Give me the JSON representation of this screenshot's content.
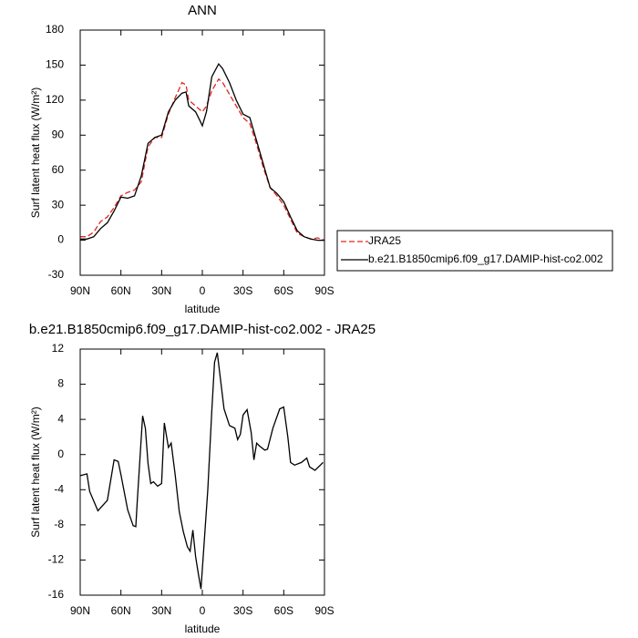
{
  "chart_data": [
    {
      "type": "line",
      "title": "ANN",
      "x_label": "latitude",
      "y_label": "Surf latent heat flux (W/m²)",
      "xlim": [
        90,
        -90
      ],
      "xticks": [
        {
          "value": 90,
          "label": "90N"
        },
        {
          "value": 60,
          "label": "60N"
        },
        {
          "value": 30,
          "label": "30N"
        },
        0,
        {
          "value": -30,
          "label": "30S"
        },
        {
          "value": -60,
          "label": "60S"
        },
        {
          "value": -90,
          "label": "90S"
        }
      ],
      "ylim": [
        -30,
        180
      ],
      "yticks": [
        -30,
        0,
        30,
        60,
        90,
        120,
        150,
        180
      ],
      "legend": "outside-right",
      "x": [
        90,
        85,
        80,
        75,
        70,
        65,
        60,
        55,
        50,
        45,
        40,
        35,
        30,
        25,
        20,
        15,
        12,
        10,
        5,
        2,
        0,
        -3,
        -7,
        -12,
        -15,
        -20,
        -25,
        -30,
        -35,
        -40,
        -45,
        -50,
        -55,
        -60,
        -65,
        -70,
        -75,
        -80,
        -85,
        -90
      ],
      "series": [
        {
          "name": "JRA25",
          "color": "#e0271f",
          "dashed": true,
          "values": [
            3,
            3,
            7,
            16,
            20,
            28,
            38,
            41,
            43,
            50,
            80,
            88,
            88,
            108,
            122,
            135,
            133,
            120,
            115,
            112,
            110,
            115,
            128,
            138,
            135,
            125,
            115,
            105,
            100,
            82,
            62,
            45,
            38,
            30,
            18,
            6,
            3,
            1,
            2,
            0
          ]
        },
        {
          "name": "b.e21.B1850cmip6.f09_g17.DAMIP-hist-co2.002",
          "color": "#000000",
          "dashed": false,
          "values": [
            1,
            1,
            3,
            10,
            15,
            25,
            37,
            36,
            38,
            55,
            83,
            88,
            90,
            110,
            120,
            126,
            127,
            115,
            110,
            103,
            98,
            110,
            140,
            151,
            147,
            135,
            120,
            108,
            105,
            85,
            65,
            45,
            40,
            33,
            20,
            8,
            3,
            1,
            0,
            0
          ]
        }
      ]
    },
    {
      "type": "line",
      "title": "b.e21.B1850cmip6.f09_g17.DAMIP-hist-co2.002 - JRA25",
      "x_label": "latitude",
      "y_label": "Surf latent heat flux (W/m²)",
      "xlim": [
        90,
        -90
      ],
      "xticks": [
        {
          "value": 90,
          "label": "90N"
        },
        {
          "value": 60,
          "label": "60N"
        },
        {
          "value": 30,
          "label": "30N"
        },
        0,
        {
          "value": -30,
          "label": "30S"
        },
        {
          "value": -60,
          "label": "60S"
        },
        {
          "value": -90,
          "label": "90S"
        }
      ],
      "ylim": [
        -16,
        12
      ],
      "yticks": [
        -16,
        -12,
        -8,
        -4,
        0,
        4,
        8,
        12
      ],
      "x": [
        90,
        85,
        83,
        77,
        70,
        65,
        62,
        60,
        55,
        51,
        49,
        48,
        44,
        42,
        40,
        38,
        36,
        33,
        30,
        28,
        25,
        23,
        20,
        17,
        14,
        11,
        9,
        7,
        5,
        3,
        1,
        -4,
        -7,
        -9,
        -11,
        -16,
        -20,
        -24,
        -26,
        -28,
        -30,
        -33,
        -36,
        -38,
        -40,
        -42,
        -46,
        -48,
        -52,
        -57,
        -60,
        -63,
        -65,
        -68,
        -73,
        -77,
        -79,
        -83,
        -89
      ],
      "series": [
        {
          "color": "#000000",
          "dashed": false,
          "values": [
            -2.4,
            -2.2,
            -4.2,
            -6.4,
            -5.2,
            -0.6,
            -0.8,
            -2.3,
            -6.3,
            -8.1,
            -8.2,
            -5.5,
            4.4,
            3.0,
            -1.0,
            -3.3,
            -3.1,
            -3.6,
            -3.3,
            3.6,
            0.8,
            1.3,
            -2.3,
            -6.5,
            -8.8,
            -10.5,
            -11.0,
            -8.6,
            -11.6,
            -13.5,
            -15.3,
            -4,
            5,
            10.5,
            11.6,
            5.2,
            3.3,
            3.0,
            1.7,
            2.3,
            4.5,
            5.1,
            2.5,
            -0.6,
            1.3,
            1.0,
            0.5,
            0.6,
            3.0,
            5.2,
            5.4,
            2.0,
            -0.9,
            -1.2,
            -0.9,
            -0.4,
            -1.4,
            -1.8,
            -0.9
          ]
        }
      ]
    }
  ]
}
